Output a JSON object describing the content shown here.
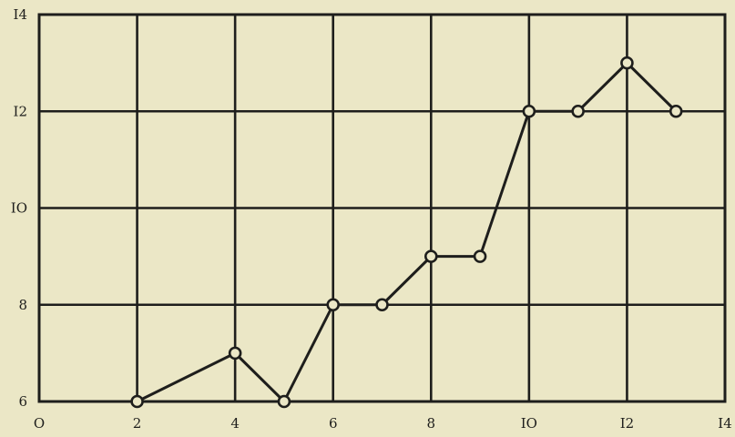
{
  "chart_data": {
    "type": "line",
    "title": "",
    "xlabel": "",
    "ylabel": "",
    "x_ticks": [
      "O",
      "2",
      "4",
      "6",
      "8",
      "IO",
      "I2",
      "I4"
    ],
    "y_ticks": [
      "6",
      "8",
      "IO",
      "I2",
      "I4"
    ],
    "xlim": [
      0,
      14
    ],
    "ylim": [
      6,
      14
    ],
    "grid": true,
    "series": [
      {
        "x": [
          2,
          4,
          5,
          6,
          7,
          8,
          9,
          10,
          11,
          12,
          13
        ],
        "y": [
          6,
          7,
          6,
          8,
          8,
          9,
          9,
          12,
          12,
          13,
          12
        ]
      }
    ]
  },
  "colors": {
    "background": "#ebe7c6",
    "ink": "#1e1e1c"
  }
}
